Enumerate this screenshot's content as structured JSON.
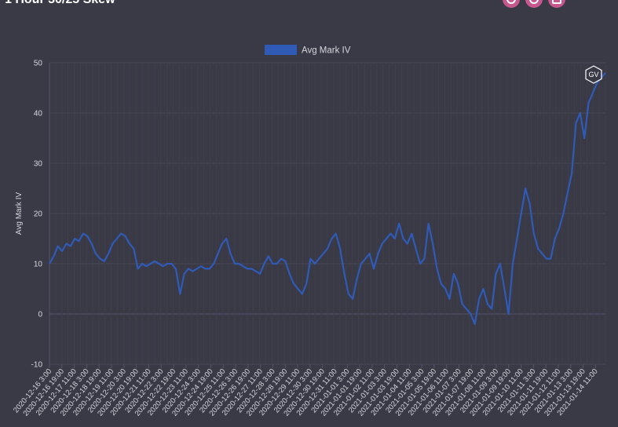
{
  "header": {
    "title": "1 Hour 30/25 Skew",
    "buttons": [
      {
        "icon": "camera-icon"
      },
      {
        "icon": "refresh-icon"
      },
      {
        "icon": "download-icon"
      }
    ],
    "accent_color": "#c7578f"
  },
  "watermark": {
    "text": "GV"
  },
  "chart_data": {
    "type": "line",
    "title": "",
    "ylabel": "Avg Mark IV",
    "xlabel": "",
    "ylim": [
      -10,
      50
    ],
    "yticks": [
      "50",
      "40",
      "30",
      "20",
      "10",
      "0",
      "-10"
    ],
    "legend": {
      "position": "top-center",
      "entries": [
        "Avg Mark IV"
      ]
    },
    "grid": true,
    "colors": {
      "line": "#2f5bb7",
      "background": "#3a3946",
      "grid": "#4a4958",
      "text": "#d6d6dc"
    },
    "x_tick_labels": [
      "2020-12-16 3:00",
      "2020-12-16 19:00",
      "2020-12-17 11:00",
      "2020-12-18 3:00",
      "2020-12-18 19:00",
      "2020-12-19 11:00",
      "2020-12-20 3:00",
      "2020-12-20 19:00",
      "2020-12-21 11:00",
      "2020-12-22 3:00",
      "2020-12-22 19:00",
      "2020-12-23 11:00",
      "2020-12-24 3:00",
      "2020-12-24 19:00",
      "2020-12-25 11:00",
      "2020-12-26 3:00",
      "2020-12-26 19:00",
      "2020-12-27 11:00",
      "2020-12-28 3:00",
      "2020-12-28 19:00",
      "2020-12-29 11:00",
      "2020-12-30 3:00",
      "2020-12-30 19:00",
      "2020-12-31 11:00",
      "2021-01-01 3:00",
      "2021-01-01 19:00",
      "2021-01-02 11:00",
      "2021-01-03 3:00",
      "2021-01-03 19:00",
      "2021-01-04 11:00",
      "2021-01-05 3:00",
      "2021-01-05 19:00",
      "2021-01-06 11:00",
      "2021-01-07 3:00",
      "2021-01-07 19:00",
      "2021-01-08 11:00",
      "2021-01-09 3:00",
      "2021-01-09 19:00",
      "2021-01-10 11:00",
      "2021-01-11 3:00",
      "2021-01-11 19:00",
      "2021-01-12 11:00",
      "2021-01-13 3:00",
      "2021-01-13 19:00",
      "2021-01-14 11:00"
    ],
    "series": [
      {
        "name": "Avg Mark IV",
        "values": [
          10,
          11.5,
          13.5,
          12.5,
          14,
          13.5,
          15,
          14.5,
          16,
          15.5,
          14,
          12,
          11,
          10.5,
          12,
          14,
          15,
          16,
          15.5,
          14,
          13,
          9,
          10,
          9.5,
          10,
          10.5,
          10,
          9.5,
          10,
          10,
          9,
          4,
          8,
          9,
          8.5,
          9,
          9.5,
          9,
          9,
          10,
          12,
          14,
          15,
          12,
          10,
          10,
          9.5,
          9,
          9,
          8.5,
          8,
          10,
          11.5,
          10,
          10,
          11,
          10.5,
          8,
          6,
          5,
          4,
          6,
          11,
          10,
          11,
          12,
          13,
          15,
          16,
          13,
          8,
          4,
          3,
          7,
          10,
          11,
          12,
          9,
          12,
          14,
          15,
          16,
          15,
          18,
          15,
          14,
          16,
          13,
          10,
          11,
          18,
          14,
          9,
          6,
          5,
          3,
          8,
          6,
          2,
          1,
          0,
          -2,
          3,
          5,
          2,
          1,
          8,
          10,
          5,
          0,
          10,
          15,
          20,
          25,
          22,
          16,
          13,
          12,
          11,
          11,
          15,
          17,
          20,
          24,
          28,
          38,
          40,
          35,
          42,
          44,
          46,
          47,
          48
        ]
      }
    ]
  }
}
